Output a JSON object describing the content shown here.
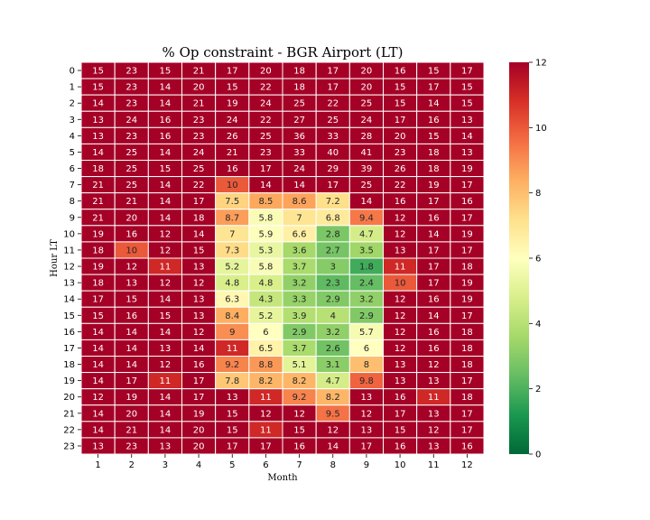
{
  "chart_data": {
    "type": "heatmap",
    "title": "% Op constraint - BGR Airport (LT)",
    "xlabel": "Month",
    "ylabel": "Hour LT",
    "x_categories": [
      "1",
      "2",
      "3",
      "4",
      "5",
      "6",
      "7",
      "8",
      "9",
      "10",
      "11",
      "12"
    ],
    "y_categories": [
      "0",
      "1",
      "2",
      "3",
      "4",
      "5",
      "6",
      "7",
      "8",
      "9",
      "10",
      "11",
      "12",
      "13",
      "14",
      "15",
      "16",
      "17",
      "18",
      "19",
      "20",
      "21",
      "22",
      "23"
    ],
    "values": [
      [
        15,
        23,
        15,
        21,
        17,
        20,
        18,
        17,
        20,
        16,
        15,
        17
      ],
      [
        15,
        23,
        14,
        20,
        15,
        22,
        18,
        17,
        20,
        15,
        17,
        15
      ],
      [
        14,
        23,
        14,
        21,
        19,
        24,
        25,
        22,
        25,
        15,
        14,
        15
      ],
      [
        13,
        24,
        16,
        23,
        24,
        22,
        27,
        25,
        24,
        17,
        16,
        13
      ],
      [
        13,
        23,
        16,
        23,
        26,
        25,
        36,
        33,
        28,
        20,
        15,
        14
      ],
      [
        14,
        25,
        14,
        24,
        21,
        23,
        33,
        40,
        41,
        23,
        18,
        13
      ],
      [
        18,
        25,
        15,
        25,
        16,
        17,
        24,
        29,
        39,
        26,
        18,
        19
      ],
      [
        21,
        25,
        14,
        22,
        10,
        14,
        14,
        17,
        25,
        22,
        19,
        17
      ],
      [
        21,
        21,
        14,
        17,
        7.5,
        8.5,
        8.6,
        7.2,
        14,
        16,
        17,
        16
      ],
      [
        21,
        20,
        14,
        18,
        8.7,
        5.8,
        7,
        6.8,
        9.4,
        12,
        16,
        17
      ],
      [
        19,
        16,
        12,
        14,
        7,
        5.9,
        6.6,
        2.8,
        4.7,
        12,
        14,
        19
      ],
      [
        18,
        10,
        12,
        15,
        7.3,
        5.3,
        3.6,
        2.7,
        3.5,
        13,
        17,
        17
      ],
      [
        19,
        12,
        11,
        13,
        5.2,
        5.8,
        3.7,
        3,
        1.8,
        11,
        17,
        18
      ],
      [
        18,
        13,
        12,
        12,
        4.8,
        4.8,
        3.2,
        2.3,
        2.4,
        10,
        17,
        19
      ],
      [
        17,
        15,
        14,
        13,
        6.3,
        4.3,
        3.3,
        2.9,
        3.2,
        12,
        16,
        19
      ],
      [
        15,
        16,
        15,
        13,
        8.4,
        5.2,
        3.9,
        4,
        2.9,
        12,
        14,
        17
      ],
      [
        14,
        14,
        14,
        12,
        9,
        6,
        2.9,
        3.2,
        5.7,
        12,
        16,
        18
      ],
      [
        14,
        14,
        13,
        14,
        11,
        6.5,
        3.7,
        2.6,
        6,
        12,
        16,
        18
      ],
      [
        14,
        14,
        12,
        16,
        9.2,
        8.8,
        5.1,
        3.1,
        8,
        13,
        12,
        18
      ],
      [
        14,
        17,
        11,
        17,
        7.8,
        8.2,
        8.2,
        4.7,
        9.8,
        13,
        13,
        17
      ],
      [
        12,
        19,
        14,
        17,
        13,
        11,
        9.2,
        8.2,
        13,
        16,
        11,
        18
      ],
      [
        14,
        20,
        14,
        19,
        15,
        12,
        12,
        9.5,
        12,
        17,
        13,
        17
      ],
      [
        14,
        21,
        14,
        20,
        15,
        11,
        15,
        12,
        13,
        15,
        12,
        17
      ],
      [
        13,
        23,
        13,
        20,
        17,
        17,
        16,
        14,
        17,
        16,
        13,
        16
      ]
    ],
    "colorbar": {
      "min": 0,
      "max": 12,
      "ticks": [
        "0",
        "2",
        "4",
        "6",
        "8",
        "10",
        "12"
      ],
      "colormap": "RdYlGn_r",
      "stops": [
        "#006837",
        "#1a9850",
        "#66bd63",
        "#a6d96a",
        "#d9ef8b",
        "#ffffbf",
        "#fee08b",
        "#fdae61",
        "#f46d43",
        "#d73027",
        "#a50026"
      ]
    },
    "grid_line_color": "#ffffff"
  }
}
